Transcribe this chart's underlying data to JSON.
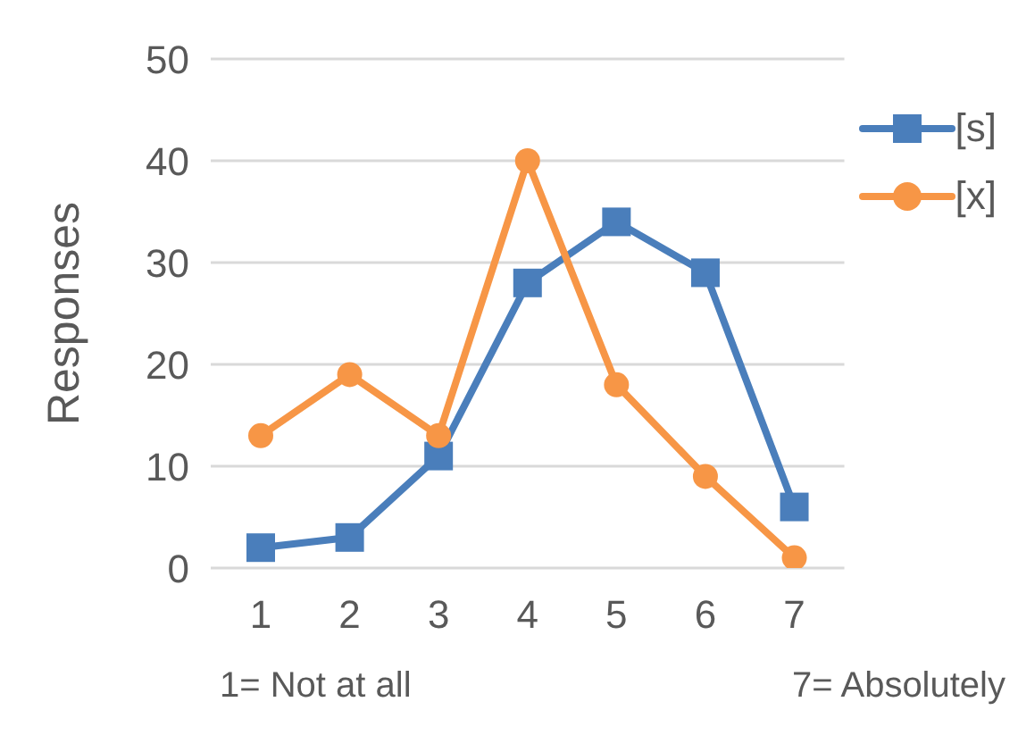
{
  "chart_data": {
    "type": "line",
    "ylabel": "Responses",
    "categories": [
      "1",
      "2",
      "3",
      "4",
      "5",
      "6",
      "7"
    ],
    "series": [
      {
        "name": "[s]",
        "color": "#4a7ebb",
        "marker": "square",
        "values": [
          2,
          3,
          11,
          28,
          34,
          29,
          6
        ]
      },
      {
        "name": "[x]",
        "color": "#f79646",
        "marker": "circle",
        "values": [
          13,
          19,
          13,
          40,
          18,
          9,
          1
        ]
      }
    ],
    "ylim": [
      0,
      50
    ],
    "yticks": [
      0,
      10,
      20,
      30,
      40,
      50
    ],
    "grid": "y",
    "legend": "top right",
    "annotations": [
      "1= Not at all",
      "7= Absolutely"
    ]
  }
}
